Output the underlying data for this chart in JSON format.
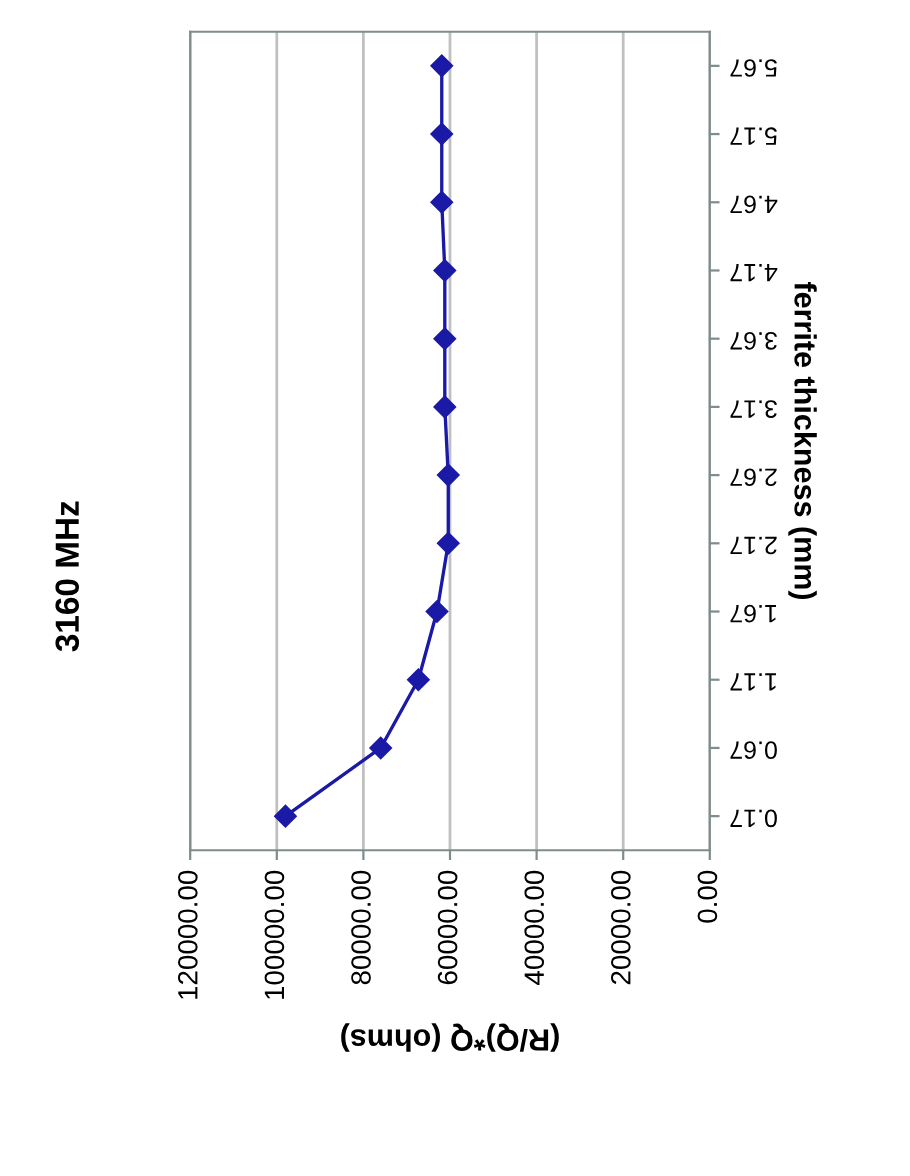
{
  "chart_data": {
    "type": "line",
    "title": "3160 MHz",
    "xlabel": "(R/Q)*Q (ohms)",
    "ylabel": "ferrite thickness (mm)",
    "categories": [
      "5.67",
      "5.17",
      "4.67",
      "4.17",
      "3.67",
      "3.17",
      "2.67",
      "2.17",
      "1.67",
      "1.17",
      "0.67",
      "0.17"
    ],
    "series": [
      {
        "color": "#1a1aa6",
        "values": [
          61900,
          61900,
          61900,
          61200,
          61200,
          61200,
          60400,
          60400,
          63000,
          67300,
          76000,
          98000
        ]
      }
    ],
    "orientation": "horizontal",
    "xlim": [
      120000,
      0
    ],
    "xticks": [
      {
        "value": 0,
        "label": "0.00"
      },
      {
        "value": 20000,
        "label": "20000.00"
      },
      {
        "value": 40000,
        "label": "40000.00"
      },
      {
        "value": 60000,
        "label": "60000.00"
      },
      {
        "value": 80000,
        "label": "80000.00"
      },
      {
        "value": 100000,
        "label": "100000.00"
      },
      {
        "value": 120000,
        "label": "120000.00"
      }
    ],
    "grid": "x",
    "marker": "diamond",
    "line_style": "solid",
    "legend": false
  }
}
